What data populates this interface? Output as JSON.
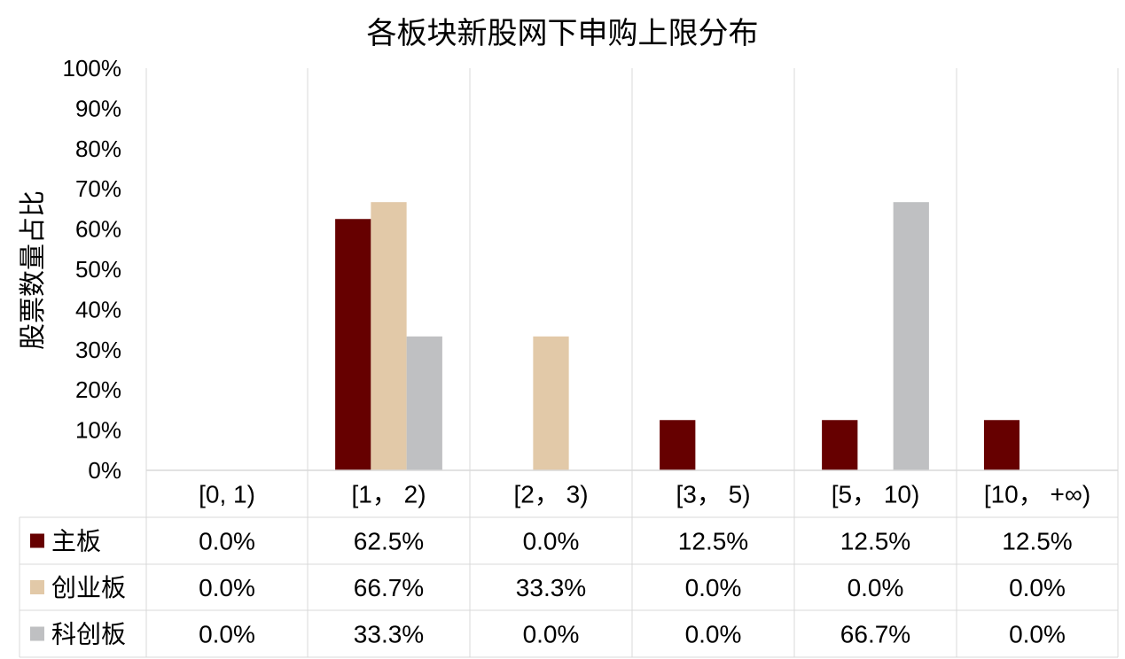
{
  "chart_data": {
    "type": "bar",
    "title": "各板块新股网下申购上限分布",
    "ylabel": "股票数量占比",
    "xlabel": "",
    "ylim": [
      0,
      100
    ],
    "yticks": [
      "0%",
      "10%",
      "20%",
      "30%",
      "40%",
      "50%",
      "60%",
      "70%",
      "80%",
      "90%",
      "100%"
    ],
    "categories": [
      "[0, 1)",
      "[1， 2)",
      "[2， 3)",
      "[3， 5)",
      "[5， 10)",
      "[10， +∞)"
    ],
    "grid": "vertical",
    "legend": "data-table",
    "series": [
      {
        "name": "主板",
        "color": "#660000",
        "values": [
          0.0,
          62.5,
          0.0,
          12.5,
          12.5,
          12.5
        ],
        "labels": [
          "0.0%",
          "62.5%",
          "0.0%",
          "12.5%",
          "12.5%",
          "12.5%"
        ]
      },
      {
        "name": "创业板",
        "color": "#E2C9A8",
        "values": [
          0.0,
          66.7,
          33.3,
          0.0,
          0.0,
          0.0
        ],
        "labels": [
          "0.0%",
          "66.7%",
          "33.3%",
          "0.0%",
          "0.0%",
          "0.0%"
        ]
      },
      {
        "name": "科创板",
        "color": "#BFC0C2",
        "values": [
          0.0,
          33.3,
          0.0,
          0.0,
          66.7,
          0.0
        ],
        "labels": [
          "0.0%",
          "33.3%",
          "0.0%",
          "0.0%",
          "66.7%",
          "0.0%"
        ]
      }
    ]
  }
}
